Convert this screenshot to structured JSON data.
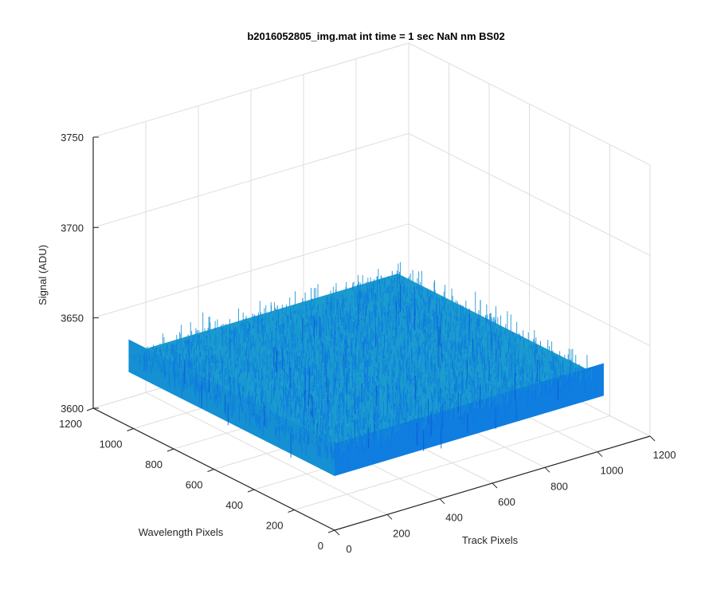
{
  "chart_data": {
    "type": "surface",
    "title": "b2016052805_img.mat int time = 1 sec  NaN nm BS02",
    "xlabel": "Track Pixels",
    "ylabel": "Wavelength Pixels",
    "zlabel": "Signal (ADU)",
    "x_ticks": [
      "0",
      "200",
      "400",
      "600",
      "800",
      "1000",
      "1200"
    ],
    "y_ticks": [
      "0",
      "200",
      "400",
      "600",
      "800",
      "1000",
      "1200"
    ],
    "z_ticks": [
      "3600",
      "3650",
      "3700",
      "3750"
    ],
    "xlim": [
      0,
      1200
    ],
    "ylim": [
      0,
      1200
    ],
    "zlim": [
      3600,
      3750
    ],
    "surface": {
      "x_range": [
        0,
        1024
      ],
      "y_range": [
        0,
        1024
      ],
      "mean_signal": 3640,
      "noise_range": [
        3615,
        3700
      ]
    },
    "grid": true,
    "colormap": [
      "#0b55d6",
      "#0f79e0",
      "#1590d2",
      "#1ea7c8",
      "#33b7b3",
      "#5cc39a"
    ]
  }
}
